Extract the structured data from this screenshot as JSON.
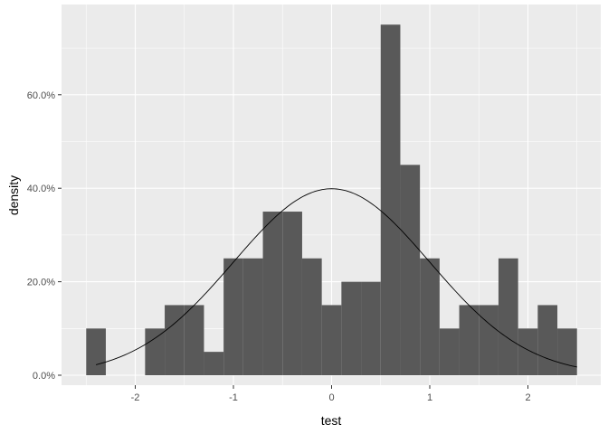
{
  "chart_data": {
    "type": "bar",
    "subtype": "histogram-with-density-curve",
    "xlabel": "test",
    "ylabel": "density",
    "xlim": [
      -2.5,
      2.5
    ],
    "ylim": [
      0,
      0.75
    ],
    "x_ticks": [
      -2,
      -1,
      0,
      1,
      2
    ],
    "y_ticks": [
      0,
      0.2,
      0.4,
      0.6
    ],
    "y_tick_labels": [
      "0.0%",
      "20.0%",
      "40.0%",
      "60.0%"
    ],
    "grid": true,
    "legend": "none",
    "bin_width": 0.2,
    "bins": [
      {
        "x0": -2.5,
        "x1": -2.3,
        "density": 0.1
      },
      {
        "x0": -2.3,
        "x1": -2.1,
        "density": 0.0
      },
      {
        "x0": -2.1,
        "x1": -1.9,
        "density": 0.0
      },
      {
        "x0": -1.9,
        "x1": -1.7,
        "density": 0.1
      },
      {
        "x0": -1.7,
        "x1": -1.5,
        "density": 0.15
      },
      {
        "x0": -1.5,
        "x1": -1.3,
        "density": 0.15
      },
      {
        "x0": -1.3,
        "x1": -1.1,
        "density": 0.05
      },
      {
        "x0": -1.1,
        "x1": -0.9,
        "density": 0.25
      },
      {
        "x0": -0.9,
        "x1": -0.7,
        "density": 0.25
      },
      {
        "x0": -0.7,
        "x1": -0.5,
        "density": 0.35
      },
      {
        "x0": -0.5,
        "x1": -0.3,
        "density": 0.35
      },
      {
        "x0": -0.3,
        "x1": -0.1,
        "density": 0.25
      },
      {
        "x0": -0.1,
        "x1": 0.1,
        "density": 0.15
      },
      {
        "x0": 0.1,
        "x1": 0.3,
        "density": 0.2
      },
      {
        "x0": 0.3,
        "x1": 0.5,
        "density": 0.2
      },
      {
        "x0": 0.5,
        "x1": 0.7,
        "density": 0.75
      },
      {
        "x0": 0.7,
        "x1": 0.9,
        "density": 0.45
      },
      {
        "x0": 0.9,
        "x1": 1.1,
        "density": 0.25
      },
      {
        "x0": 1.1,
        "x1": 1.3,
        "density": 0.1
      },
      {
        "x0": 1.3,
        "x1": 1.5,
        "density": 0.15
      },
      {
        "x0": 1.5,
        "x1": 1.7,
        "density": 0.15
      },
      {
        "x0": 1.7,
        "x1": 1.9,
        "density": 0.25
      },
      {
        "x0": 1.9,
        "x1": 2.1,
        "density": 0.1
      },
      {
        "x0": 2.1,
        "x1": 2.3,
        "density": 0.15
      },
      {
        "x0": 2.3,
        "x1": 2.5,
        "density": 0.1
      }
    ],
    "curve": {
      "type": "normal-density",
      "mean": 0,
      "sd": 1,
      "x_range": [
        -2.4,
        2.5
      ]
    },
    "colors": {
      "panel_background": "#ebebeb",
      "grid": "#ffffff",
      "bar_fill": "#595959",
      "curve": "#000000",
      "tick_text": "#4d4d4d",
      "title_text": "#000000"
    }
  }
}
